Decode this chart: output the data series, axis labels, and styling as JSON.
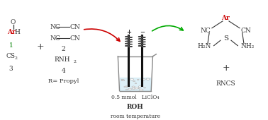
{
  "bg_color": "#ffffff",
  "conditions_line1": "0.5 mmol   LiClO₄",
  "conditions_line2": "ROH",
  "conditions_line3": "room temperature",
  "text_color": "#333333",
  "red_color": "#cc0000",
  "green_color": "#00aa00",
  "ar_color": "#cc0000"
}
